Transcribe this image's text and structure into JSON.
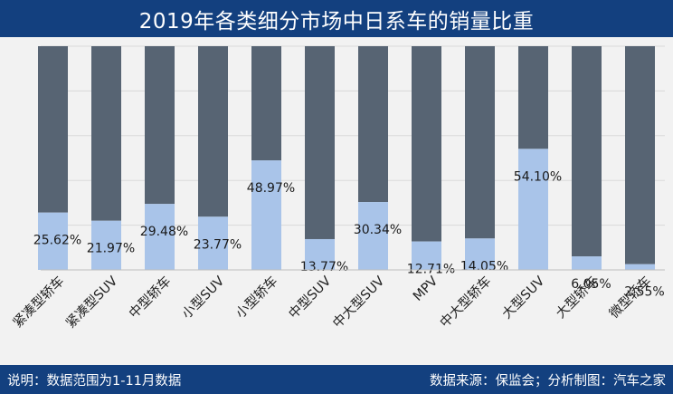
{
  "title": "2019年各类细分市场中日系车的销量比重",
  "footer": {
    "note": "说明：数据范围为1-11月数据",
    "source": "数据来源：保监会；分析制图：汽车之家"
  },
  "chart_data": {
    "type": "bar",
    "stacked": true,
    "categories": [
      "紧凑型轿车",
      "紧凑型SUV",
      "中型轿车",
      "小型SUV",
      "小型轿车",
      "中型SUV",
      "中大型SUV",
      "MPV",
      "中大型轿车",
      "大型SUV",
      "大型轿车",
      "微型轿车"
    ],
    "series": [
      {
        "values": [
          25.62,
          21.97,
          29.48,
          23.77,
          48.97,
          13.77,
          30.34,
          12.71,
          14.05,
          54.1,
          6.05,
          2.55
        ],
        "labels": [
          "25.62%",
          "21.97%",
          "29.48%",
          "23.77%",
          "48.97%",
          "13.77%",
          "30.34%",
          "12.71%",
          "14.05%",
          "54.10%",
          "6.05%",
          "2.55%"
        ],
        "color": "#a9c4e9"
      },
      {
        "values": [
          74.38,
          78.03,
          70.52,
          76.23,
          51.03,
          86.23,
          69.66,
          87.29,
          85.95,
          45.9,
          93.95,
          97.45
        ],
        "color": "#576473"
      }
    ],
    "ylim": [
      0,
      100
    ],
    "grid": true,
    "legend": "none"
  }
}
